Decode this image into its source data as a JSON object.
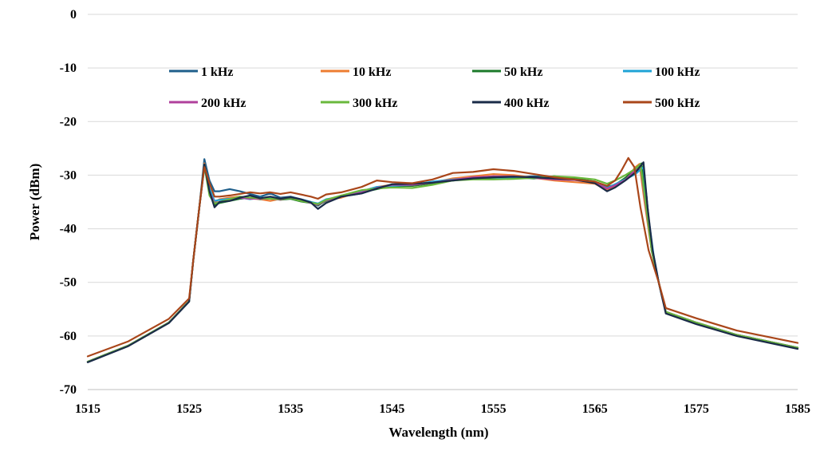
{
  "chart_data": {
    "type": "line",
    "title": "",
    "xlabel": "Wavelength (nm)",
    "ylabel": "Power (dBm)",
    "xlim": [
      1515,
      1585
    ],
    "ylim": [
      -70,
      0
    ],
    "x_ticks": [
      "1515",
      "1525",
      "1535",
      "1545",
      "1555",
      "1565",
      "1575",
      "1585"
    ],
    "y_ticks": [
      "0",
      "-10",
      "-20",
      "-30",
      "-40",
      "-50",
      "-60",
      "-70"
    ],
    "grid": true,
    "legend_position": "top",
    "series": [
      {
        "name": "1 kHz",
        "color": "#1f5f8b",
        "x": [
          1515,
          1519,
          1523,
          1525,
          1525.4,
          1526.0,
          1526.5,
          1527,
          1527.5,
          1528,
          1529,
          1530,
          1531,
          1532,
          1533,
          1534,
          1535,
          1536,
          1537,
          1537.7,
          1538.5,
          1540,
          1542,
          1543.5,
          1545,
          1547,
          1549,
          1551,
          1553,
          1555,
          1557,
          1559,
          1561,
          1563,
          1565,
          1566.2,
          1567,
          1568,
          1569,
          1569.7,
          1570.1,
          1570.6,
          1571.3,
          1572,
          1575,
          1579,
          1585
        ],
        "y": [
          -64.8,
          -61.8,
          -57.5,
          -53.5,
          -46,
          -36,
          -27,
          -31,
          -33,
          -33,
          -32.6,
          -33,
          -33.5,
          -34,
          -33.4,
          -34.2,
          -34,
          -34.5,
          -35,
          -35.7,
          -34.6,
          -34,
          -33.4,
          -32.5,
          -32,
          -31.8,
          -31.4,
          -30.8,
          -30.6,
          -30.2,
          -30.4,
          -30.2,
          -30.4,
          -30.6,
          -31.5,
          -32.8,
          -32,
          -30.5,
          -29.5,
          -28.5,
          -34,
          -44,
          -50,
          -55.5,
          -57.5,
          -59.8,
          -62.2
        ]
      },
      {
        "name": "10 kHz",
        "color": "#ed7d31",
        "x": [
          1515,
          1519,
          1523,
          1525,
          1525.4,
          1526.0,
          1526.5,
          1527,
          1527.5,
          1528,
          1529,
          1530,
          1531,
          1532,
          1533,
          1534,
          1535,
          1536,
          1537,
          1537.7,
          1538.5,
          1540,
          1542,
          1543.5,
          1545,
          1547,
          1549,
          1551,
          1553,
          1555,
          1557,
          1559,
          1561,
          1563,
          1565,
          1566.2,
          1567,
          1568,
          1569,
          1569.4,
          1569.9,
          1570.6,
          1571.3,
          1572,
          1575,
          1579,
          1585
        ],
        "y": [
          -64.8,
          -61.8,
          -57.5,
          -53.5,
          -46,
          -36,
          -27.8,
          -33.5,
          -35,
          -34.5,
          -34.2,
          -34,
          -34.3,
          -34.5,
          -34.8,
          -34.4,
          -34.2,
          -34.8,
          -35,
          -35.4,
          -34.6,
          -34.2,
          -33,
          -32.2,
          -31.8,
          -31.9,
          -31.4,
          -30.6,
          -30.2,
          -29.8,
          -30,
          -30.5,
          -31,
          -31.3,
          -31.6,
          -32.8,
          -32,
          -30.8,
          -28.5,
          -27.9,
          -35,
          -44,
          -50,
          -55.5,
          -57.5,
          -59.8,
          -62.2
        ]
      },
      {
        "name": "50 kHz",
        "color": "#1b7a2a",
        "x": [
          1515,
          1519,
          1523,
          1525,
          1525.4,
          1526.0,
          1526.5,
          1527,
          1527.5,
          1528,
          1529,
          1530,
          1531,
          1532,
          1533,
          1534,
          1535,
          1536,
          1537,
          1537.7,
          1538.5,
          1540,
          1542,
          1543.5,
          1545,
          1547,
          1549,
          1551,
          1553,
          1555,
          1557,
          1559,
          1561,
          1563,
          1565,
          1566.2,
          1567,
          1568,
          1569,
          1569.6,
          1570.0,
          1570.6,
          1571.3,
          1572,
          1575,
          1579,
          1585
        ],
        "y": [
          -64.8,
          -61.8,
          -57.5,
          -53.5,
          -46,
          -36,
          -28,
          -33,
          -35.5,
          -35.2,
          -34.8,
          -34.4,
          -34.2,
          -34.5,
          -34.2,
          -34.6,
          -34.4,
          -34.9,
          -35.2,
          -35.6,
          -34.8,
          -33.8,
          -33.2,
          -32.6,
          -32,
          -32,
          -31.5,
          -31,
          -30.6,
          -30.5,
          -30.4,
          -30.6,
          -30.2,
          -30.6,
          -31.2,
          -32.2,
          -31.8,
          -30.5,
          -28.8,
          -27.8,
          -33,
          -44,
          -50,
          -55.5,
          -57.5,
          -59.8,
          -62.2
        ]
      },
      {
        "name": "100 kHz",
        "color": "#1fa3d6",
        "x": [
          1515,
          1519,
          1523,
          1525,
          1525.4,
          1526.0,
          1526.5,
          1527,
          1527.5,
          1528,
          1529,
          1530,
          1531,
          1532,
          1533,
          1534,
          1535,
          1536,
          1537,
          1537.7,
          1538.5,
          1540,
          1542,
          1543.5,
          1545,
          1547,
          1549,
          1551,
          1553,
          1555,
          1557,
          1559,
          1561,
          1563,
          1565,
          1566.2,
          1567,
          1568,
          1569,
          1569.8,
          1570.3,
          1570.8,
          1571.3,
          1572,
          1575,
          1579,
          1585
        ],
        "y": [
          -64.8,
          -61.8,
          -57.5,
          -53.5,
          -46,
          -36,
          -28.5,
          -32.5,
          -34.8,
          -34.6,
          -34.4,
          -34.2,
          -34.5,
          -34.2,
          -34.2,
          -34.5,
          -34.3,
          -34.5,
          -35,
          -35.3,
          -34.5,
          -34,
          -33,
          -32.2,
          -32,
          -31.8,
          -31.2,
          -30.8,
          -30.5,
          -30.4,
          -30.6,
          -30.5,
          -30.6,
          -30.8,
          -31.3,
          -32.4,
          -31.7,
          -30.8,
          -29.8,
          -28.5,
          -38,
          -45,
          -50,
          -55.5,
          -57.5,
          -59.8,
          -62.2
        ]
      },
      {
        "name": "200 kHz",
        "color": "#b0409c",
        "x": [
          1515,
          1519,
          1523,
          1525,
          1525.4,
          1526.0,
          1526.5,
          1527,
          1527.5,
          1528,
          1529,
          1530,
          1531,
          1532,
          1533,
          1534,
          1535,
          1536,
          1537,
          1537.7,
          1538.5,
          1540,
          1542,
          1543.5,
          1545,
          1547,
          1549,
          1551,
          1553,
          1555,
          1557,
          1559,
          1561,
          1563,
          1565,
          1566.2,
          1567,
          1568,
          1569,
          1569.5,
          1569.9,
          1570.6,
          1571.3,
          1572,
          1575,
          1579,
          1585
        ],
        "y": [
          -64.8,
          -61.8,
          -57.5,
          -53.5,
          -46,
          -36,
          -28.2,
          -33.2,
          -35.2,
          -35,
          -34.6,
          -34.2,
          -34.4,
          -34.4,
          -34.4,
          -34.6,
          -34.2,
          -34.7,
          -35.2,
          -35.5,
          -34.7,
          -34,
          -33.2,
          -32.4,
          -31.8,
          -31.8,
          -31.4,
          -30.9,
          -30.4,
          -30.2,
          -30.2,
          -30.5,
          -30.8,
          -30.9,
          -31.4,
          -32.5,
          -31.9,
          -30.9,
          -29,
          -28.2,
          -34,
          -44,
          -50,
          -55.5,
          -57.5,
          -59.8,
          -62.2
        ]
      },
      {
        "name": "300 kHz",
        "color": "#6ab83c",
        "x": [
          1515,
          1519,
          1523,
          1525,
          1525.4,
          1526.0,
          1526.5,
          1527,
          1527.5,
          1528,
          1529,
          1530,
          1531,
          1532,
          1533,
          1534,
          1535,
          1536,
          1537,
          1537.7,
          1538.5,
          1540,
          1542,
          1543.5,
          1545,
          1547,
          1549,
          1551,
          1553,
          1555,
          1557,
          1559,
          1561,
          1563,
          1565,
          1566.2,
          1567,
          1568,
          1569,
          1569.5,
          1569.9,
          1570.6,
          1571.3,
          1572,
          1575,
          1579,
          1585
        ],
        "y": [
          -64.8,
          -61.8,
          -57.5,
          -53.5,
          -46,
          -36,
          -28.3,
          -33.8,
          -35.3,
          -35,
          -34.5,
          -34,
          -34.2,
          -34.3,
          -34.4,
          -34.5,
          -34.3,
          -34.8,
          -35.1,
          -35.4,
          -34.6,
          -33.8,
          -32.8,
          -32.5,
          -32.3,
          -32.4,
          -31.8,
          -31,
          -30.8,
          -30.8,
          -30.7,
          -30.5,
          -30.2,
          -30.4,
          -30.8,
          -31.6,
          -31,
          -30,
          -28.8,
          -28,
          -33.5,
          -44,
          -50,
          -55.5,
          -57.5,
          -59.8,
          -62.2
        ]
      },
      {
        "name": "400 kHz",
        "color": "#1a2b48",
        "x": [
          1515,
          1519,
          1523,
          1525,
          1525.4,
          1526.0,
          1526.5,
          1527,
          1527.5,
          1528,
          1529,
          1530,
          1531,
          1532,
          1533,
          1534,
          1535,
          1536,
          1537,
          1537.7,
          1538.5,
          1540,
          1542,
          1543.5,
          1545,
          1547,
          1549,
          1551,
          1553,
          1555,
          1557,
          1559,
          1561,
          1563,
          1565,
          1566.2,
          1567,
          1568,
          1569,
          1569.8,
          1570.2,
          1570.7,
          1571.3,
          1572,
          1575,
          1579,
          1585
        ],
        "y": [
          -64.9,
          -61.9,
          -57.6,
          -53.6,
          -46,
          -36,
          -28,
          -33,
          -36,
          -35,
          -34.8,
          -34.2,
          -33.8,
          -34.3,
          -34,
          -34.4,
          -34.1,
          -34.5,
          -35.1,
          -36.3,
          -35.2,
          -34,
          -33.4,
          -32.5,
          -31.7,
          -31.6,
          -31.4,
          -31,
          -30.6,
          -30.4,
          -30.3,
          -30.4,
          -30.6,
          -30.8,
          -31.5,
          -33,
          -32.3,
          -31,
          -29.5,
          -27.6,
          -36,
          -44,
          -50,
          -55.8,
          -57.8,
          -60,
          -62.4
        ]
      },
      {
        "name": "500 kHz",
        "color": "#a9461a",
        "x": [
          1515,
          1519,
          1523,
          1525,
          1525.4,
          1526.0,
          1526.5,
          1527,
          1527.5,
          1528,
          1529,
          1530,
          1531,
          1532,
          1533,
          1534,
          1535,
          1536,
          1537,
          1537.7,
          1538.5,
          1540,
          1542,
          1543.5,
          1545,
          1547,
          1549,
          1551,
          1553,
          1555,
          1557,
          1559,
          1561,
          1563,
          1565,
          1566.2,
          1567,
          1567.6,
          1568.3,
          1568.9,
          1569.5,
          1570.3,
          1571.3,
          1572,
          1575,
          1579,
          1585
        ],
        "y": [
          -63.8,
          -61,
          -56.8,
          -53,
          -46,
          -36,
          -28.5,
          -31.5,
          -34,
          -34,
          -33.8,
          -33.5,
          -33.2,
          -33.4,
          -33.2,
          -33.5,
          -33.2,
          -33.6,
          -34,
          -34.4,
          -33.6,
          -33.2,
          -32.2,
          -31,
          -31.3,
          -31.5,
          -30.8,
          -29.6,
          -29.4,
          -28.9,
          -29.2,
          -29.8,
          -30.4,
          -30.8,
          -31.2,
          -32,
          -31,
          -29.2,
          -26.8,
          -28.5,
          -36,
          -44,
          -50,
          -54.8,
          -56.7,
          -59,
          -61.3
        ]
      }
    ]
  }
}
